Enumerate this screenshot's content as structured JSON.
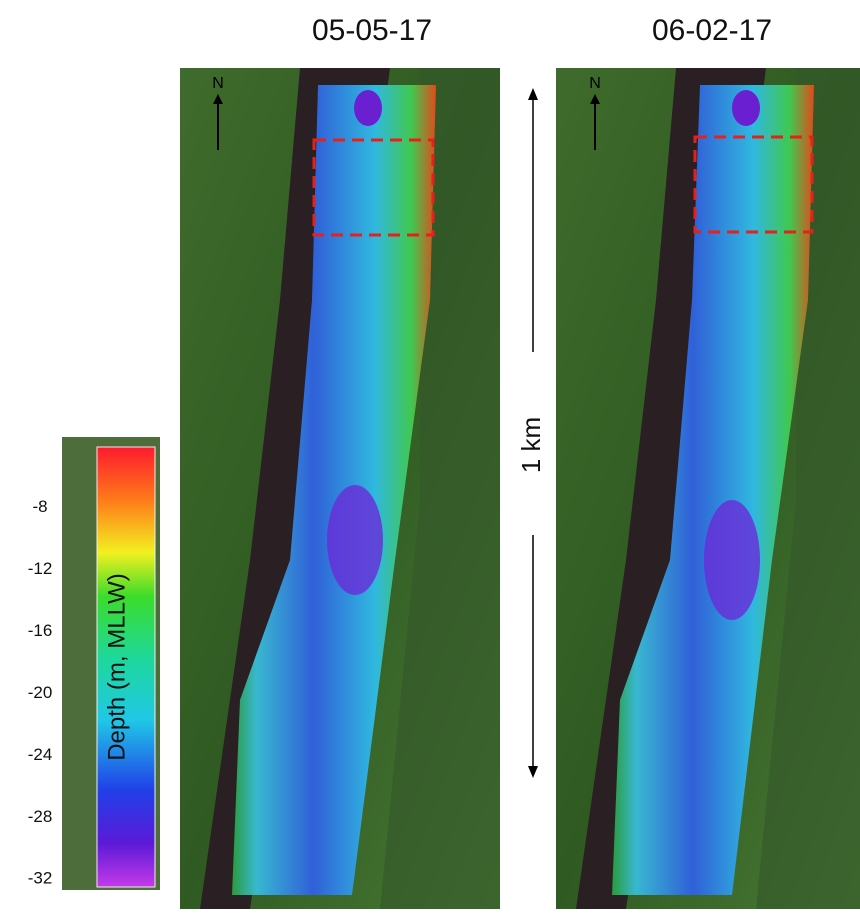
{
  "panels": [
    {
      "date": "05-05-17"
    },
    {
      "date": "06-02-17"
    }
  ],
  "north_label": "N",
  "scale_bar": {
    "label": "1 km"
  },
  "colorbar": {
    "label": "Depth (m, MLLW)",
    "range": [
      -4.1,
      -32.5
    ],
    "ticks": [
      -8,
      -12,
      -16,
      -20,
      -24,
      -28,
      -32
    ]
  }
}
